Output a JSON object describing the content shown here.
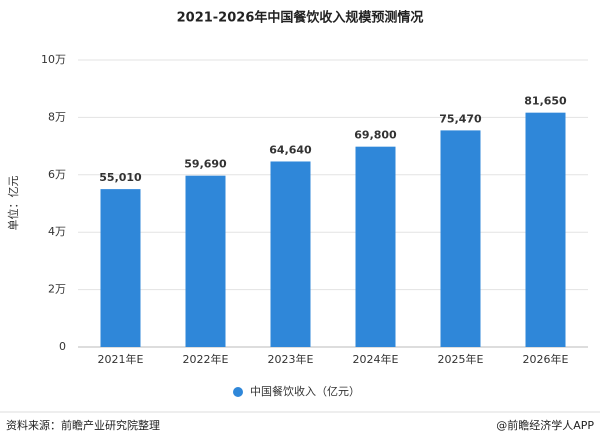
{
  "chart_data": {
    "type": "bar",
    "title": "2021-2026年中国餐饮收入规模预测情况",
    "y_label": "单位：亿元",
    "categories": [
      "2021年E",
      "2022年E",
      "2023年E",
      "2024年E",
      "2025年E",
      "2026年E"
    ],
    "series": [
      {
        "name": "中国餐饮收入（亿元）",
        "color": "#2f87d9",
        "values": [
          55010,
          59690,
          64640,
          69800,
          75470,
          81650
        ],
        "value_labels": [
          "55,010",
          "59,690",
          "64,640",
          "69,800",
          "75,470",
          "81,650"
        ]
      }
    ],
    "ylim": [
      0,
      100000
    ],
    "yticks": [
      0,
      {
        "value": 20000,
        "label": "2万"
      },
      {
        "value": 40000,
        "label": "4万"
      },
      {
        "value": 60000,
        "label": "6万"
      },
      {
        "value": 80000,
        "label": "8万"
      },
      {
        "value": 100000,
        "label": "10万"
      }
    ],
    "grid": true,
    "legend": "bottom"
  },
  "footer": {
    "source": "资料来源：前瞻产业研究院整理",
    "brand": "@前瞻经济学人APP"
  }
}
